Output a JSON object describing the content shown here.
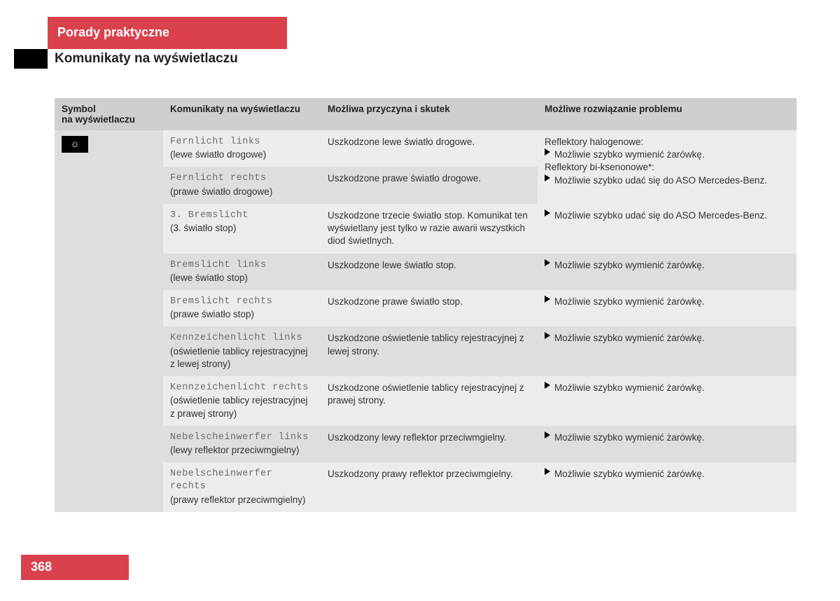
{
  "header": {
    "tab_title": "Porady praktyczne",
    "subtitle": "Komunikaty na wyświetlaczu",
    "page_number": "368"
  },
  "columns": {
    "symbol": "Symbol\nna wyświetlaczu",
    "messages": "Komunikaty na wyświetlaczu",
    "cause": "Możliwa przyczyna i skutek",
    "solution": "Możliwe rozwiązanie problemu"
  },
  "icon_glyph": "☼",
  "solutions": {
    "halogen_header": "Reflektory halogenowe:",
    "halogen_action": "Możliwie szybko wymienić żarówkę.",
    "xenon_header": "Reflektory bi-ksenonowe*:",
    "xenon_action": "Możliwie szybko udać się do ASO Mercedes-Benz.",
    "aso": "Możliwie szybko udać się do ASO Mercedes-Benz.",
    "bulb": "Możliwie szybko wymienić żarówkę."
  },
  "rows": [
    {
      "code": "Fernlicht links",
      "trans": "(lewe światło drogowe)",
      "cause": "Uszkodzone lewe światło drogowe.",
      "sol": "combo",
      "shade": "light"
    },
    {
      "code": "Fernlicht rechts",
      "trans": "(prawe światło drogowe)",
      "cause": "Uszkodzone prawe światło drogowe.",
      "sol": "combo_continue",
      "shade": "dark"
    },
    {
      "code": "3. Bremslicht",
      "trans": "(3. światło stop)",
      "cause": "Uszkodzone trzecie światło stop. Komunikat ten wyświetlany jest tylko w razie awarii wszystkich diod świetlnych.",
      "sol": "aso",
      "shade": "light"
    },
    {
      "code": "Bremslicht links",
      "trans": "(lewe światło stop)",
      "cause": "Uszkodzone lewe światło stop.",
      "sol": "bulb",
      "shade": "dark"
    },
    {
      "code": "Bremslicht rechts",
      "trans": "(prawe światło stop)",
      "cause": "Uszkodzone prawe światło stop.",
      "sol": "bulb",
      "shade": "light"
    },
    {
      "code": "Kennzeichenlicht links",
      "trans": "(oświetlenie tablicy rejestracyjnej z lewej strony)",
      "cause": "Uszkodzone oświetlenie tablicy rejestracyjnej z lewej strony.",
      "sol": "bulb",
      "shade": "dark"
    },
    {
      "code": "Kennzeichenlicht rechts",
      "trans": "(oświetlenie tablicy rejestracyjnej z prawej strony)",
      "cause": "Uszkodzone oświetlenie tablicy rejestracyjnej z prawej strony.",
      "sol": "bulb",
      "shade": "light"
    },
    {
      "code": "Nebelscheinwerfer links",
      "trans": "(lewy reflektor przeciwmgielny)",
      "cause": "Uszkodzony lewy reflektor przeciwmgielny.",
      "sol": "bulb",
      "shade": "dark"
    },
    {
      "code": "Nebelscheinwerfer rechts",
      "trans": "(prawy reflektor przeciwmgielny)",
      "cause": "Uszkodzony prawy reflektor przeciwmgielny.",
      "sol": "bulb",
      "shade": "light"
    }
  ]
}
